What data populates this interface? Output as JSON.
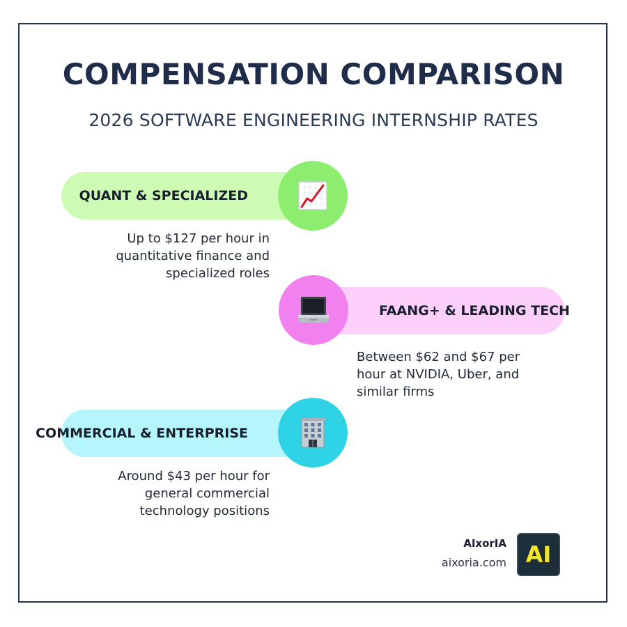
{
  "header": {
    "title": "COMPENSATION COMPARISON",
    "subtitle": "2026 SOFTWARE ENGINEERING INTERNSHIP RATES"
  },
  "tiers": [
    {
      "label": "QUANT & SPECIALIZED",
      "icon": "chart-increasing-icon",
      "pill_color": "#cdfbb4",
      "circle_color": "#8ded6f",
      "description": [
        "Up to $127 per hour in",
        "quantitative finance and",
        "specialized roles"
      ]
    },
    {
      "label": "FAANG+ & LEADING TECH",
      "icon": "laptop-icon",
      "pill_color": "#fcd0fb",
      "circle_color": "#f081ef",
      "description": [
        "Between $62 and $67 per",
        "hour at NVIDIA, Uber, and",
        "similar firms"
      ]
    },
    {
      "label": "COMMERCIAL & ENTERPRISE",
      "icon": "office-building-icon",
      "pill_color": "#b4f6fb",
      "circle_color": "#2fd3e6",
      "description": [
        "Around $43 per hour for",
        "general commercial",
        "technology positions"
      ]
    }
  ],
  "branding": {
    "name": "AIxorIA",
    "url": "aixoria.com",
    "logo_text": "AI",
    "logo_color": "#f3e52b"
  }
}
